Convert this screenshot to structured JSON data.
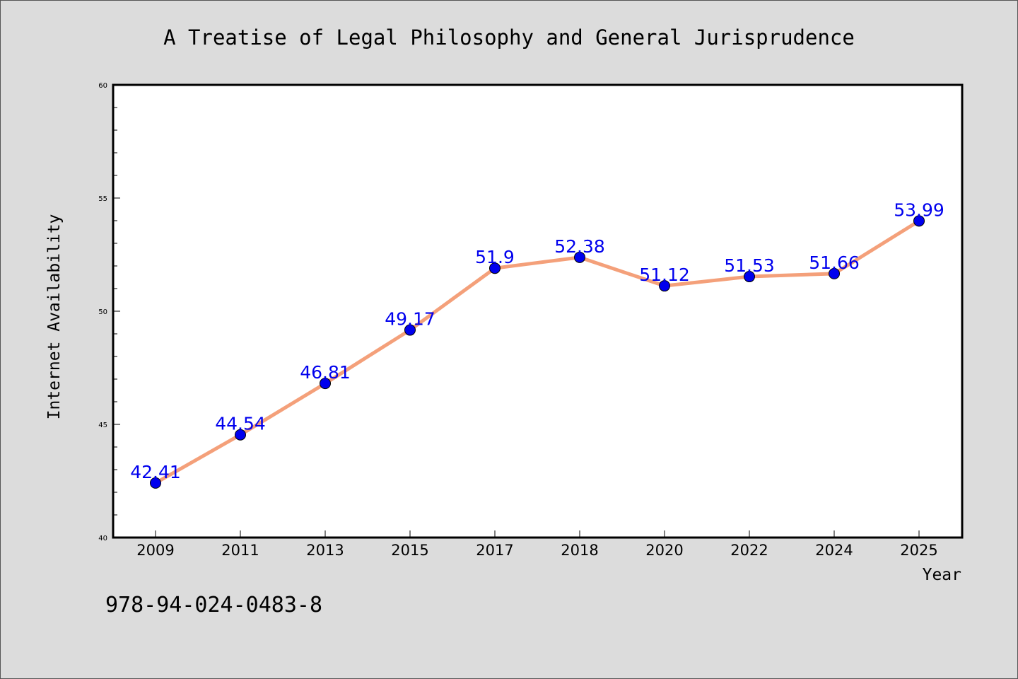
{
  "chart_data": {
    "type": "line",
    "title": "A Treatise of Legal Philosophy and General Jurisprudence",
    "xlabel": "Year",
    "ylabel": "Internet Availability",
    "categories": [
      "2009",
      "2011",
      "2013",
      "2015",
      "2017",
      "2018",
      "2020",
      "2022",
      "2024",
      "2025"
    ],
    "series": [
      {
        "values": [
          42.41,
          44.54,
          46.81,
          49.17,
          51.9,
          52.38,
          51.12,
          51.53,
          51.66,
          53.99
        ],
        "labels": [
          "42.41",
          "44.54",
          "46.81",
          "49.17",
          "51.9",
          "52.38",
          "51.12",
          "51.53",
          "51.66",
          "53.99"
        ]
      }
    ],
    "ylim": [
      40,
      60
    ],
    "yticks": [
      "40",
      "45",
      "50",
      "55",
      "60"
    ],
    "grid": false,
    "colors": {
      "line": "#f4a07a",
      "marker": "#0000ee",
      "label": "#0000ee"
    }
  },
  "footer": {
    "isbn": "978-94-024-0483-8"
  }
}
